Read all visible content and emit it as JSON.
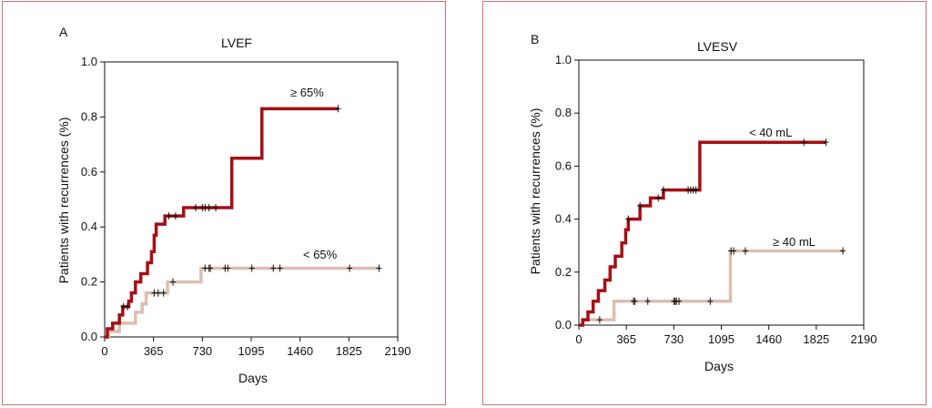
{
  "chart_data": [
    {
      "type": "line",
      "panel_letter": "A",
      "title": "LVEF",
      "xlabel": "Days",
      "ylabel": "Patients with recurrences (%)",
      "xlim": [
        0,
        2190
      ],
      "ylim": [
        0,
        1.0
      ],
      "x_ticks": [
        "0",
        "365",
        "730",
        "1095",
        "1460",
        "1825",
        "2190"
      ],
      "y_ticks": [
        "0.0",
        "0.2",
        "0.4",
        "0.6",
        "0.8",
        "1.0"
      ],
      "grid": false,
      "step": true,
      "series": [
        {
          "name": "≥ 65%",
          "color": "#a50f15",
          "points": [
            [
              0,
              0
            ],
            [
              20,
              0.03
            ],
            [
              60,
              0.05
            ],
            [
              110,
              0.08
            ],
            [
              135,
              0.11
            ],
            [
              180,
              0.13
            ],
            [
              200,
              0.16
            ],
            [
              230,
              0.2
            ],
            [
              270,
              0.23
            ],
            [
              320,
              0.27
            ],
            [
              350,
              0.31
            ],
            [
              370,
              0.37
            ],
            [
              385,
              0.41
            ],
            [
              450,
              0.44
            ],
            [
              590,
              0.47
            ],
            [
              950,
              0.65
            ],
            [
              1175,
              0.83
            ],
            [
              1745,
              0.83
            ]
          ],
          "censored": [
            140,
            170,
            480,
            530,
            680,
            730,
            750,
            780,
            830,
            1745
          ]
        },
        {
          "name": "< 65%",
          "color": "#dcbeb0",
          "points": [
            [
              0,
              0
            ],
            [
              30,
              0.02
            ],
            [
              110,
              0.05
            ],
            [
              230,
              0.09
            ],
            [
              280,
              0.12
            ],
            [
              310,
              0.16
            ],
            [
              470,
              0.2
            ],
            [
              720,
              0.25
            ],
            [
              2050,
              0.25
            ]
          ],
          "censored": [
            370,
            400,
            440,
            510,
            750,
            780,
            790,
            900,
            920,
            1100,
            1260,
            1310,
            1830,
            2050
          ]
        }
      ]
    },
    {
      "type": "line",
      "panel_letter": "B",
      "title": "LVESV",
      "xlabel": "Days",
      "ylabel": "Patients with recurrences (%)",
      "xlim": [
        0,
        2190
      ],
      "ylim": [
        0,
        1.0
      ],
      "x_ticks": [
        "0",
        "365",
        "730",
        "1095",
        "1460",
        "1825",
        "2190"
      ],
      "y_ticks": [
        "0.0",
        "0.2",
        "0.4",
        "0.6",
        "0.8",
        "1.0"
      ],
      "grid": false,
      "step": true,
      "series": [
        {
          "name": "< 40 mL",
          "color": "#a50f15",
          "points": [
            [
              0,
              0
            ],
            [
              30,
              0.02
            ],
            [
              70,
              0.05
            ],
            [
              110,
              0.09
            ],
            [
              150,
              0.13
            ],
            [
              200,
              0.17
            ],
            [
              240,
              0.22
            ],
            [
              280,
              0.26
            ],
            [
              330,
              0.31
            ],
            [
              360,
              0.36
            ],
            [
              380,
              0.4
            ],
            [
              470,
              0.45
            ],
            [
              550,
              0.48
            ],
            [
              650,
              0.51
            ],
            [
              930,
              0.69
            ],
            [
              1900,
              0.69
            ]
          ],
          "censored": [
            380,
            470,
            610,
            650,
            840,
            860,
            880,
            900,
            1730,
            1900
          ]
        },
        {
          "name": "≥ 40 mL",
          "color": "#dcbeb0",
          "points": [
            [
              0,
              0
            ],
            [
              30,
              0.02
            ],
            [
              270,
              0.09
            ],
            [
              1165,
              0.28
            ],
            [
              2030,
              0.28
            ]
          ],
          "censored": [
            160,
            420,
            430,
            530,
            730,
            740,
            750,
            770,
            1010,
            1170,
            1190,
            1280,
            2030
          ]
        }
      ]
    }
  ]
}
